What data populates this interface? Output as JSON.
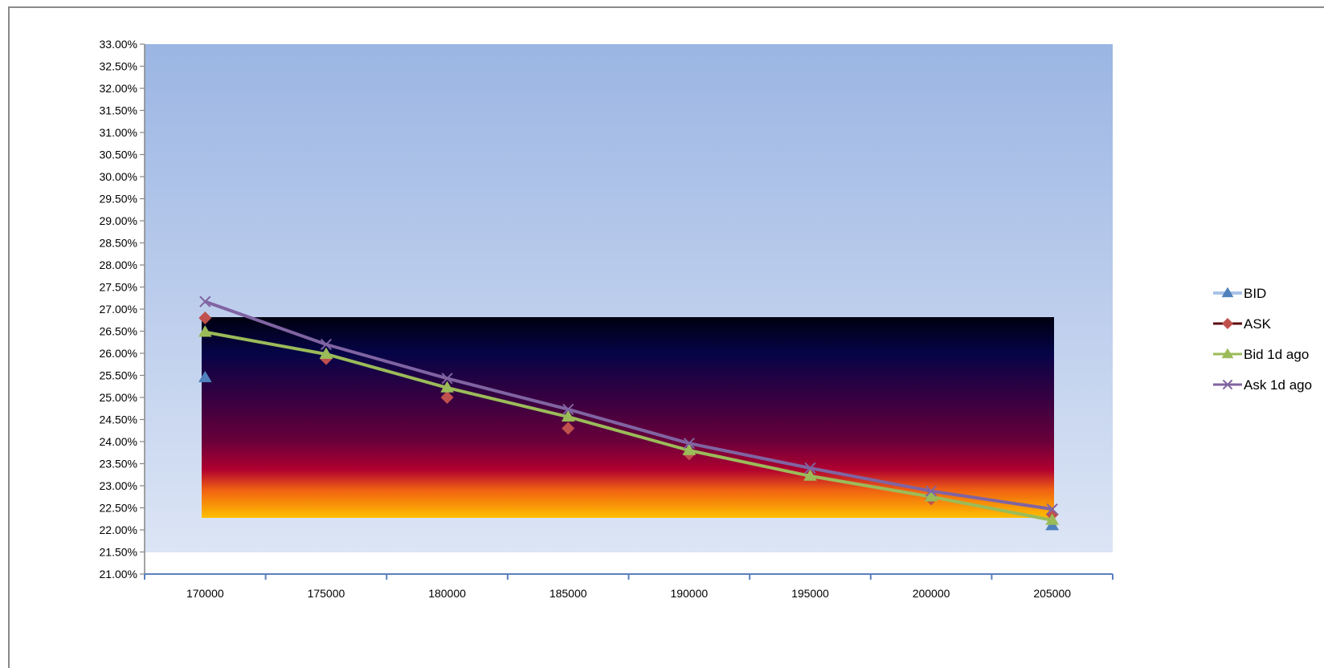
{
  "chart_data": {
    "type": "line",
    "title": "",
    "xlabel": "",
    "ylabel": "",
    "categories": [
      "170000",
      "175000",
      "180000",
      "185000",
      "190000",
      "195000",
      "200000",
      "205000"
    ],
    "y_ticks": [
      "21.00%",
      "21.50%",
      "22.00%",
      "22.50%",
      "23.00%",
      "23.50%",
      "24.00%",
      "24.50%",
      "25.00%",
      "25.50%",
      "26.00%",
      "26.50%",
      "27.00%",
      "27.50%",
      "28.00%",
      "28.50%",
      "29.00%",
      "29.50%",
      "30.00%",
      "30.50%",
      "31.00%",
      "31.50%",
      "32.00%",
      "32.50%",
      "33.00%"
    ],
    "ylim": [
      21.0,
      33.0
    ],
    "y_unit": "percent",
    "grid": false,
    "legend_position": "right",
    "series": [
      {
        "name": "BID",
        "color": "#4f81bd",
        "marker": "triangle",
        "line": false,
        "values": [
          25.45,
          null,
          null,
          null,
          null,
          null,
          null,
          22.1
        ]
      },
      {
        "name": "ASK",
        "color": "#c0504d",
        "marker": "diamond",
        "line": false,
        "values": [
          26.8,
          25.88,
          25.0,
          24.3,
          23.72,
          null,
          22.7,
          22.35
        ]
      },
      {
        "name": "Bid 1d ago",
        "color": "#9bbb59",
        "marker": "triangle",
        "line": true,
        "values": [
          26.48,
          25.98,
          25.22,
          24.56,
          23.8,
          23.22,
          22.75,
          22.22
        ]
      },
      {
        "name": "Ask 1d ago",
        "color": "#8064a2",
        "marker": "x",
        "line": true,
        "values": [
          27.17,
          26.2,
          25.43,
          24.73,
          23.96,
          23.4,
          22.88,
          22.47
        ]
      }
    ]
  }
}
